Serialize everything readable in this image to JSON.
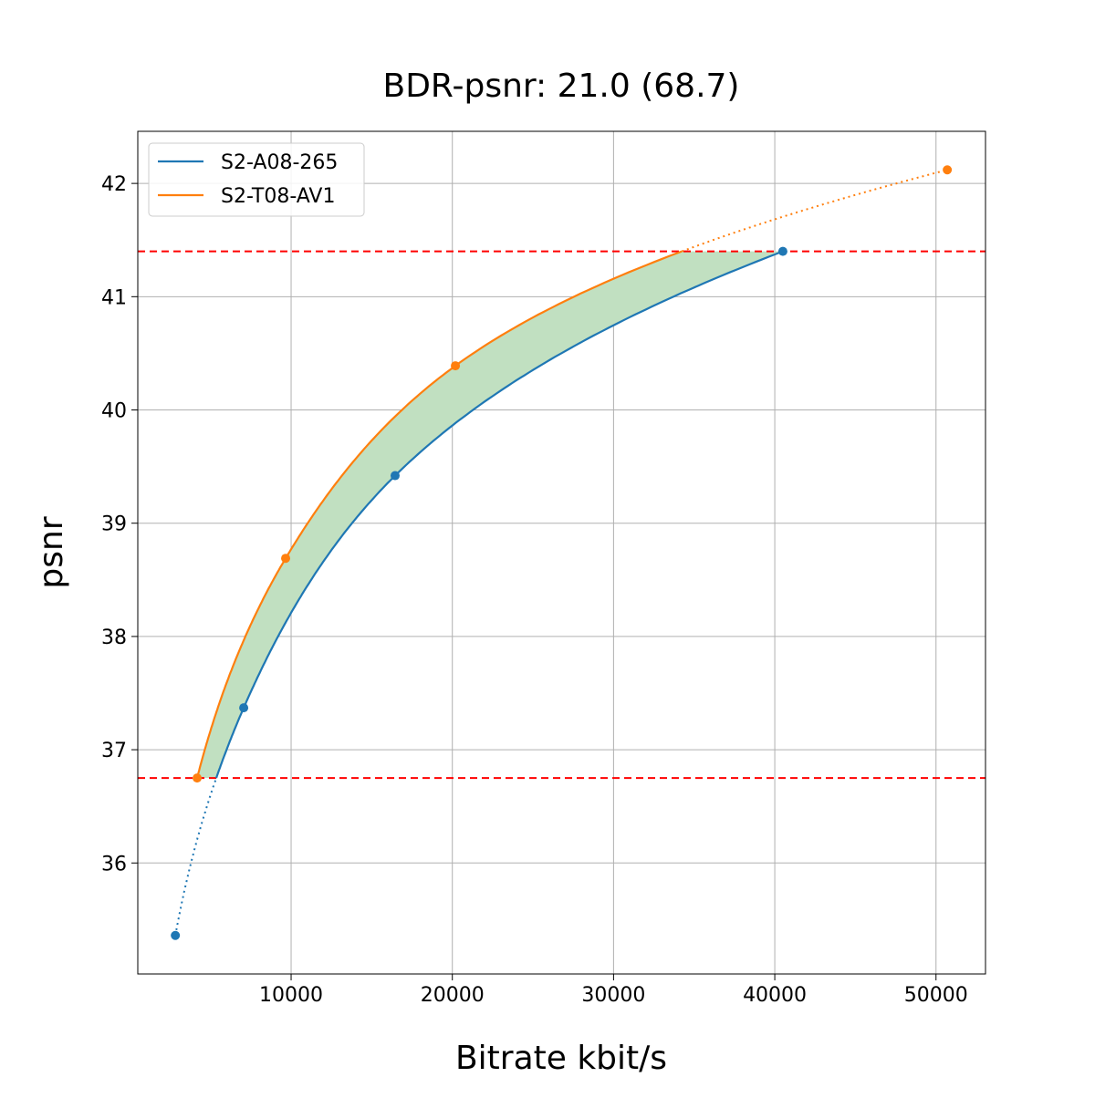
{
  "chart_data": {
    "type": "line",
    "title": "BDR-psnr: 21.0 (68.7)",
    "xlabel": "Bitrate kbit/s",
    "ylabel": "psnr",
    "xlim": [
      490,
      53070
    ],
    "ylim": [
      35.02,
      42.46
    ],
    "xticks": [
      10000,
      20000,
      30000,
      40000,
      50000
    ],
    "yticks": [
      36,
      37,
      38,
      39,
      40,
      41,
      42
    ],
    "grid": true,
    "legend_position": "top-left",
    "series": [
      {
        "name": "S2-A08-265",
        "color": "#1f77b4",
        "x": [
          2820,
          7060,
          16450,
          40500
        ],
        "y": [
          35.36,
          37.37,
          39.42,
          41.4
        ]
      },
      {
        "name": "S2-T08-AV1",
        "color": "#ff7f0e",
        "x": [
          4170,
          9660,
          20190,
          50700
        ],
        "y": [
          36.75,
          38.69,
          40.39,
          42.12
        ]
      }
    ],
    "reference_lines": [
      {
        "y": 41.4,
        "color": "#ff0000",
        "style": "dashed"
      },
      {
        "y": 36.75,
        "color": "#ff0000",
        "style": "dashed"
      }
    ],
    "fill_between": {
      "color": "#c1e0c1",
      "y_range": [
        36.75,
        41.4
      ]
    }
  }
}
